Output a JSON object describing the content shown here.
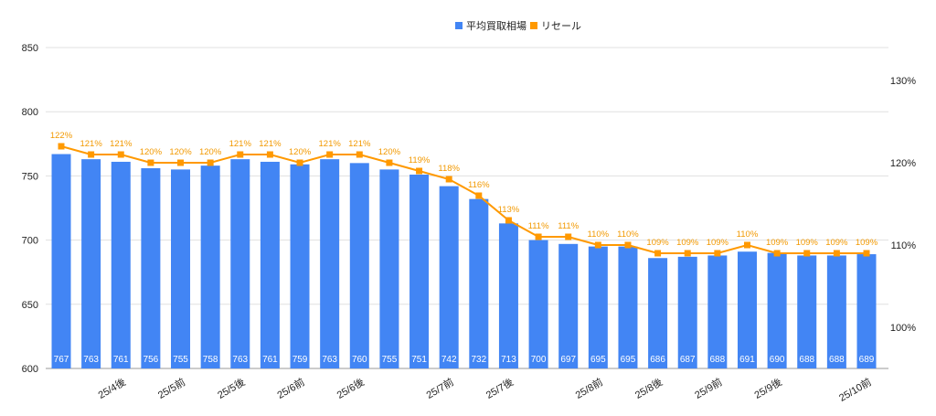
{
  "chart_data": {
    "type": "bar+line",
    "legend": {
      "position": "top",
      "entries": [
        "平均買取相場",
        "リセール"
      ]
    },
    "categories": [
      "",
      "",
      "25/4後",
      "",
      "25/5前",
      "",
      "25/5後",
      "",
      "25/6前",
      "",
      "25/6後",
      "",
      "",
      "25/7前",
      "",
      "25/7後",
      "",
      "",
      "25/8前",
      "",
      "25/8後",
      "",
      "25/9前",
      "",
      "25/9後",
      "",
      "",
      "25/10前"
    ],
    "series": [
      {
        "name": "平均買取相場",
        "type": "bar",
        "axis": "left",
        "color": "#4285f4",
        "values": [
          767,
          763,
          761,
          756,
          755,
          758,
          763,
          761,
          759,
          763,
          760,
          755,
          751,
          742,
          732,
          713,
          700,
          697,
          695,
          695,
          686,
          687,
          688,
          691,
          690,
          688,
          688,
          689
        ]
      },
      {
        "name": "リセール",
        "type": "line",
        "axis": "right",
        "color": "#ff9900",
        "values": [
          122,
          121,
          121,
          120,
          120,
          120,
          121,
          121,
          120,
          121,
          121,
          120,
          119,
          118,
          116,
          113,
          111,
          111,
          110,
          110,
          109,
          109,
          109,
          110,
          109,
          109,
          109,
          109
        ],
        "labels": [
          "122%",
          "121%",
          "121%",
          "120%",
          "120%",
          "120%",
          "121%",
          "121%",
          "120%",
          "121%",
          "121%",
          "120%",
          "119%",
          "118%",
          "116%",
          "113%",
          "111%",
          "111%",
          "110%",
          "110%",
          "109%",
          "109%",
          "109%",
          "110%",
          "109%",
          "109%",
          "109%",
          "109%"
        ]
      }
    ],
    "left_axis": {
      "ylim": [
        600,
        850
      ],
      "ticks": [
        "600",
        "650",
        "700",
        "750",
        "800",
        "850"
      ]
    },
    "right_axis": {
      "ylim": [
        95,
        134
      ],
      "ticks": [
        "100%",
        "110%",
        "120%",
        "130%"
      ],
      "tick_values": [
        100,
        110,
        120,
        130
      ]
    },
    "grid": true
  }
}
